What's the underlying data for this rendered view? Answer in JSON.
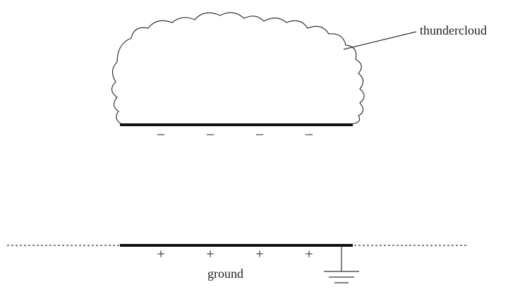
{
  "cloud_label": "thundercloud",
  "ground_label": "ground",
  "cloud_charges": [
    "–",
    "–",
    "–",
    "–"
  ],
  "ground_charges": [
    "+",
    "+",
    "+",
    "+"
  ]
}
